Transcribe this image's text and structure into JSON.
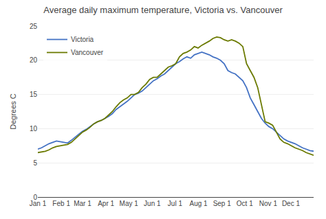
{
  "chart_data": {
    "type": "line",
    "title": "Average daily maximum temperature, Victoria vs. Vancouver",
    "ylabel": "Degrees C",
    "x": [
      0,
      4.918918918,
      9.837837837,
      14.756756756,
      19.675675675,
      24.594594594,
      29.513513513,
      34.432432432,
      39.351351351,
      44.27027027,
      49.189189189,
      54.108108108,
      59.027027027,
      63.945945945,
      68.864864864,
      73.783783783,
      78.702702702,
      83.621621621,
      88.54054054,
      93.459459459,
      98.378378378,
      103.297297297,
      108.216216216,
      113.135135135,
      118.054054054,
      122.972972972,
      127.891891891,
      132.81081081,
      137.729729729,
      142.648648648,
      147.567567567,
      152.486486486,
      157.405405405,
      162.324324324,
      167.243243243,
      172.162162162,
      177.081081081,
      182,
      186.918918918,
      191.837837837,
      196.756756756,
      201.675675675,
      206.594594594,
      211.513513513,
      216.432432432,
      221.351351351,
      226.27027027,
      231.189189189,
      236.108108108,
      241.027027027,
      245.945945945,
      250.864864864,
      255.783783783,
      260.702702702,
      265.621621621,
      270.54054054,
      275.459459459,
      280.378378378,
      285.297297297,
      290.216216216,
      295.135135135,
      300.054054054,
      304.972972972,
      309.891891891,
      314.81081081,
      319.729729729,
      324.648648648,
      329.567567567,
      334.486486486,
      339.405405405,
      344.324324324,
      349.243243243,
      354.162162162,
      359.081081081,
      364
    ],
    "series": [
      {
        "name": "Victoria",
        "color": "#4472C4",
        "values": [
          7.0,
          7.2,
          7.5,
          7.8,
          8.0,
          8.2,
          8.1,
          8.0,
          7.9,
          8.3,
          8.8,
          9.2,
          9.6,
          9.9,
          10.3,
          10.7,
          11.0,
          11.2,
          11.5,
          11.8,
          12.2,
          12.8,
          13.2,
          13.6,
          14.0,
          14.5,
          15.0,
          15.2,
          15.5,
          16.0,
          16.5,
          17.0,
          17.3,
          17.7,
          18.0,
          18.5,
          19.0,
          19.5,
          19.8,
          20.2,
          20.5,
          20.3,
          20.8,
          21.0,
          21.2,
          21.0,
          20.8,
          20.5,
          20.3,
          20.0,
          19.5,
          18.5,
          18.2,
          18.0,
          17.5,
          17.0,
          16.0,
          14.5,
          13.5,
          12.5,
          11.5,
          10.8,
          10.3,
          10.0,
          9.5,
          9.0,
          8.5,
          8.2,
          8.0,
          7.8,
          7.5,
          7.2,
          7.0,
          6.8,
          6.7
        ]
      },
      {
        "name": "Vancouver",
        "color": "#6B7A00",
        "values": [
          6.5,
          6.6,
          6.7,
          6.9,
          7.2,
          7.4,
          7.5,
          7.6,
          7.7,
          8.0,
          8.5,
          9.0,
          9.5,
          9.8,
          10.2,
          10.7,
          11.0,
          11.2,
          11.5,
          12.0,
          12.5,
          13.2,
          13.8,
          14.2,
          14.5,
          15.0,
          15.0,
          15.3,
          16.0,
          16.5,
          17.2,
          17.5,
          17.5,
          18.0,
          18.5,
          19.0,
          19.2,
          19.5,
          20.5,
          21.0,
          21.2,
          21.5,
          22.0,
          21.8,
          22.2,
          22.5,
          22.8,
          23.2,
          23.4,
          23.3,
          23.0,
          22.8,
          23.0,
          22.8,
          22.5,
          22.0,
          19.5,
          18.5,
          17.5,
          16.0,
          13.5,
          11.0,
          10.8,
          10.5,
          9.5,
          8.5,
          8.0,
          7.8,
          7.5,
          7.2,
          7.0,
          6.8,
          6.5,
          6.3,
          6.1
        ]
      }
    ],
    "xlim": [
      0,
      364
    ],
    "xticks": [
      {
        "value": 0,
        "label": "Jan 1"
      },
      {
        "value": 31,
        "label": "Feb 1"
      },
      {
        "value": 59,
        "label": "Mar 1"
      },
      {
        "value": 90,
        "label": "Apr 1"
      },
      {
        "value": 120,
        "label": "May 1"
      },
      {
        "value": 151,
        "label": "Jun 1"
      },
      {
        "value": 181,
        "label": "Jul 1"
      },
      {
        "value": 212,
        "label": "Aug 1"
      },
      {
        "value": 243,
        "label": "Sep 1"
      },
      {
        "value": 273,
        "label": "Oct 1"
      },
      {
        "value": 304,
        "label": "Nov 1"
      },
      {
        "value": 334,
        "label": "Dec 1"
      }
    ],
    "ylim": [
      0,
      25
    ],
    "yticks": [
      0,
      5,
      10,
      15,
      20,
      25
    ],
    "grid": "y",
    "legend": "upper left"
  }
}
